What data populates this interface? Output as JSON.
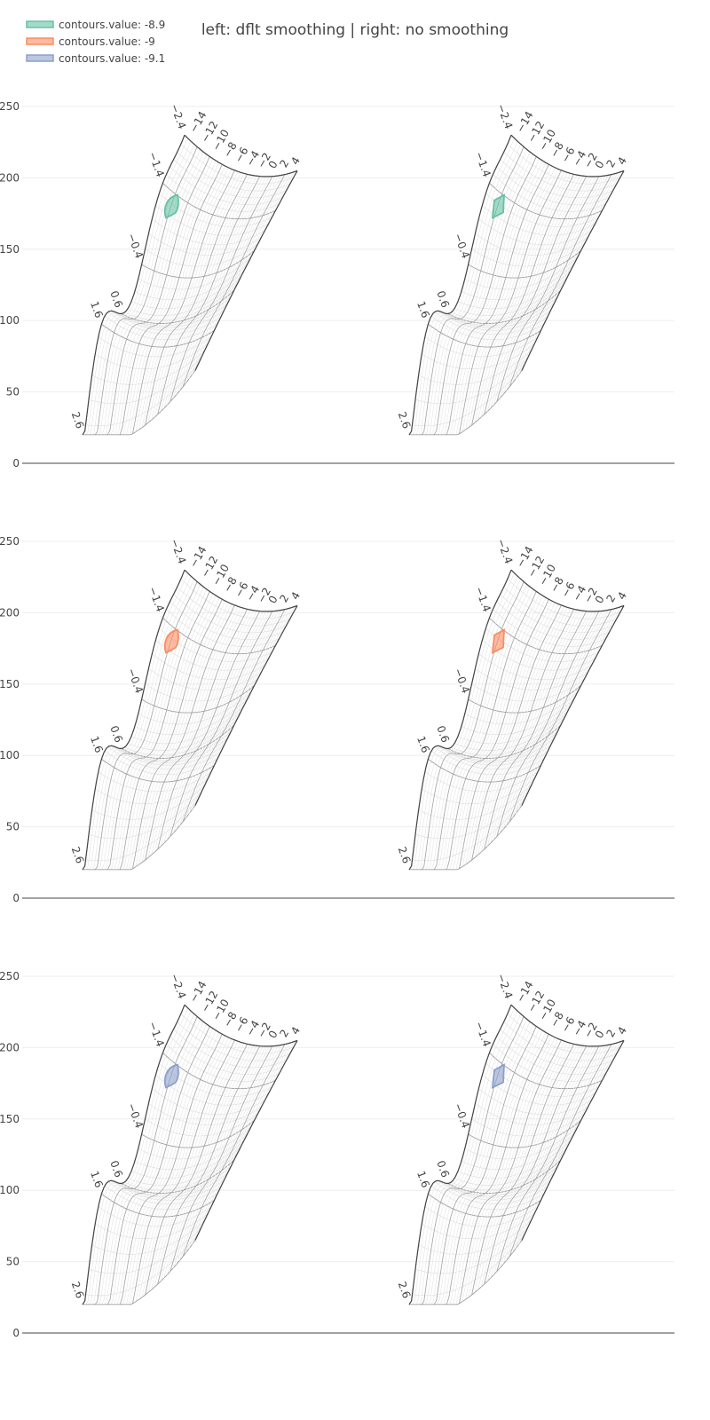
{
  "title": "left: dflt smoothing | right: no smoothing",
  "legend": [
    {
      "label": "contours.value: -8.9",
      "color": "#66c2a5"
    },
    {
      "label": "contours.value: -9",
      "color": "#fc8d62"
    },
    {
      "label": "contours.value: -9.1",
      "color": "#8da0cb"
    }
  ],
  "chart_data": {
    "type": "contourcarpet",
    "layout": "3 rows x 2 columns of subplots",
    "column_titles": [
      "dflt smoothing",
      "no smoothing"
    ],
    "y_axis": {
      "range": [
        0,
        250
      ],
      "ticks": [
        0,
        50,
        100,
        150,
        200,
        250
      ],
      "grid": true
    },
    "carpet": {
      "a_axis_ticks": [
        "−14",
        "−12",
        "−10",
        "−8",
        "−6",
        "−4",
        "−2",
        "0",
        "2",
        "4"
      ],
      "b_axis_ticks": [
        "−2.4",
        "−1.4",
        "−0.4",
        "0.6",
        "1.6",
        "2.6"
      ],
      "a_range": [
        -14,
        4
      ],
      "b_range": [
        -2.4,
        2.6
      ],
      "y_extent": [
        20,
        230
      ]
    },
    "subplots": [
      {
        "row": 1,
        "col": 1,
        "smoothing": "dflt",
        "contour_value": -8.9,
        "fill": "#66c2a5"
      },
      {
        "row": 1,
        "col": 2,
        "smoothing": "none",
        "contour_value": -8.9,
        "fill": "#66c2a5"
      },
      {
        "row": 2,
        "col": 1,
        "smoothing": "dflt",
        "contour_value": -9,
        "fill": "#fc8d62"
      },
      {
        "row": 2,
        "col": 2,
        "smoothing": "none",
        "contour_value": -9,
        "fill": "#fc8d62"
      },
      {
        "row": 3,
        "col": 1,
        "smoothing": "dflt",
        "contour_value": -9.1,
        "fill": "#8da0cb"
      },
      {
        "row": 3,
        "col": 2,
        "smoothing": "none",
        "contour_value": -9.1,
        "fill": "#8da0cb"
      }
    ]
  }
}
